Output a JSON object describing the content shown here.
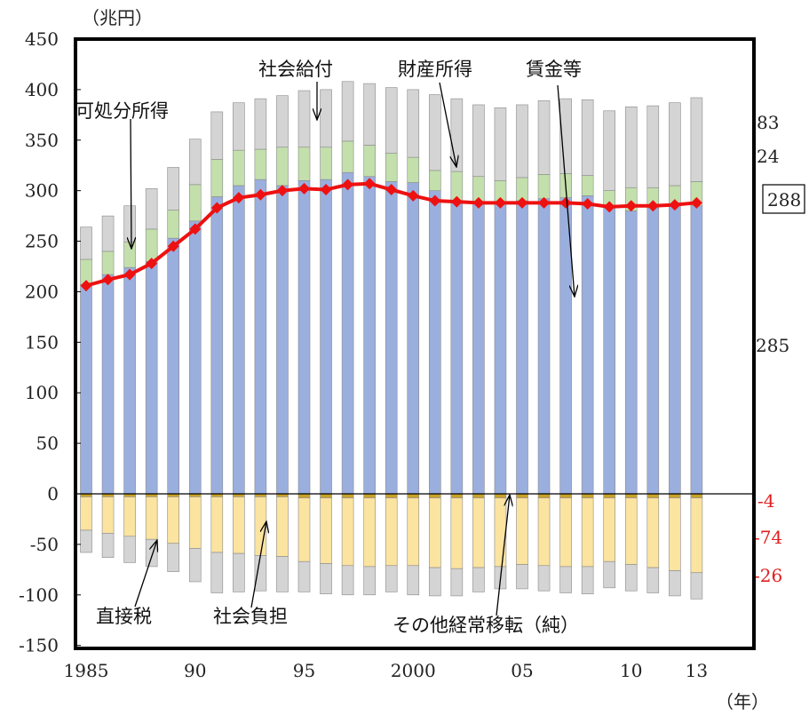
{
  "chart_data": {
    "type": "bar",
    "stacked": true,
    "yunit": "（兆円）",
    "xunit": "（年）",
    "ylim": [
      -150,
      450
    ],
    "yticks": [
      450,
      400,
      350,
      300,
      250,
      200,
      150,
      100,
      50,
      0,
      -50,
      -100,
      -150
    ],
    "x": [
      1985,
      1986,
      1987,
      1988,
      1989,
      1990,
      1991,
      1992,
      1993,
      1994,
      1995,
      1996,
      1997,
      1998,
      1999,
      2000,
      2001,
      2002,
      2003,
      2004,
      2005,
      2006,
      2007,
      2008,
      2009,
      2010,
      2011,
      2012,
      2013
    ],
    "xtick_labels": [
      {
        "year": 1985,
        "label": "1985"
      },
      {
        "year": 1990,
        "label": "90"
      },
      {
        "year": 1995,
        "label": "95"
      },
      {
        "year": 2000,
        "label": "2000"
      },
      {
        "year": 2005,
        "label": "05"
      },
      {
        "year": 2010,
        "label": "10"
      },
      {
        "year": 2013,
        "label": "13"
      }
    ],
    "grid": false,
    "series": [
      {
        "name": "賃金等",
        "color": "#9aafde",
        "values": [
          207,
          217,
          224,
          230,
          253,
          270,
          294,
          305,
          311,
          305,
          310,
          311,
          318,
          314,
          309,
          308,
          300,
          290,
          288,
          287,
          290,
          292,
          293,
          295,
          284,
          280,
          283,
          285,
          285
        ]
      },
      {
        "name": "財産所得",
        "color": "#c3dfac",
        "values": [
          25,
          23,
          25,
          32,
          28,
          36,
          37,
          35,
          30,
          38,
          33,
          32,
          31,
          31,
          28,
          25,
          20,
          29,
          26,
          23,
          23,
          24,
          24,
          20,
          16,
          23,
          20,
          20,
          24
        ]
      },
      {
        "name": "社会給付",
        "color": "#d4d4d4",
        "values": [
          32,
          35,
          36,
          40,
          42,
          45,
          47,
          47,
          50,
          51,
          56,
          57,
          59,
          61,
          65,
          67,
          75,
          72,
          71,
          72,
          72,
          73,
          74,
          75,
          79,
          80,
          81,
          82,
          83
        ]
      },
      {
        "name": "その他経常移転（純）",
        "color": "#c9a227",
        "values": [
          -3,
          -3,
          -3,
          -3,
          -3,
          -3,
          -3,
          -3,
          -3,
          -3,
          -4,
          -4,
          -4,
          -4,
          -4,
          -4,
          -4,
          -4,
          -4,
          -4,
          -4,
          -4,
          -4,
          -4,
          -4,
          -4,
          -4,
          -4,
          -4
        ]
      },
      {
        "name": "社会負担",
        "color": "#fbe3a0",
        "values": [
          -33,
          -36,
          -39,
          -42,
          -46,
          -51,
          -55,
          -56,
          -58,
          -59,
          -63,
          -65,
          -67,
          -68,
          -67,
          -67,
          -69,
          -70,
          -69,
          -68,
          -66,
          -67,
          -68,
          -68,
          -63,
          -66,
          -69,
          -72,
          -74
        ]
      },
      {
        "name": "直接税",
        "color": "#d4d4d4",
        "values": [
          -22,
          -24,
          -26,
          -27,
          -28,
          -33,
          -40,
          -38,
          -35,
          -35,
          -30,
          -30,
          -29,
          -28,
          -26,
          -29,
          -28,
          -27,
          -24,
          -22,
          -24,
          -25,
          -26,
          -27,
          -26,
          -26,
          -25,
          -25,
          -26
        ]
      },
      {
        "name": "可処分所得",
        "type": "line",
        "color": "#ee1111",
        "values": [
          206,
          212,
          217,
          228,
          245,
          262,
          283,
          293,
          296,
          300,
          302,
          301,
          306,
          307,
          301,
          295,
          290,
          289,
          288,
          288,
          288,
          288,
          288,
          287,
          284,
          285,
          285,
          286,
          288
        ]
      }
    ],
    "annotations": [
      {
        "text": "社会給付"
      },
      {
        "text": "財産所得"
      },
      {
        "text": "賃金等"
      },
      {
        "text": "可処分所得"
      },
      {
        "text": "直接税"
      },
      {
        "text": "社会負担"
      },
      {
        "text": "その他経常移転（純）"
      }
    ],
    "right_labels": [
      {
        "text": "83",
        "color": "#222222"
      },
      {
        "text": "24",
        "color": "#222222"
      },
      {
        "text": "288",
        "color": "#222222",
        "boxed": true
      },
      {
        "text": "285",
        "color": "#222222"
      },
      {
        "text": "-4",
        "color": "#e02020"
      },
      {
        "text": "-74",
        "color": "#e02020"
      },
      {
        "text": "-26",
        "color": "#e02020"
      }
    ]
  }
}
